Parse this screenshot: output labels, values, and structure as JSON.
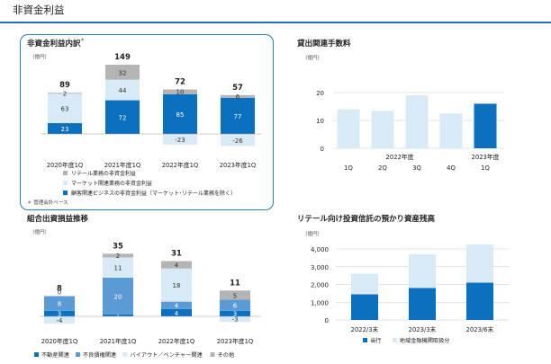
{
  "page": {
    "title": "非資金利益"
  },
  "colors": {
    "dark_blue": "#0a70bf",
    "mid_blue": "#5b9bd5",
    "light_blue": "#d9eaf7",
    "gray": "#b4b4b4",
    "accent_rule": "#1f6fbd"
  },
  "chart_data": [
    {
      "type": "bar",
      "stacked": true,
      "title": "非資金利益内訳",
      "title_mark": "*",
      "unit": "（億円）",
      "categories": [
        "2020年度1Q",
        "2021年度1Q",
        "2022年度1Q",
        "2023年度1Q"
      ],
      "totals": [
        89,
        149,
        72,
        57
      ],
      "series": [
        {
          "name": "顧客関連ビジネスの非資金利益（マーケット･リテール業務を除く）",
          "color": "#0a70bf",
          "values": [
            23,
            72,
            85,
            77
          ]
        },
        {
          "name": "マーケット関連業務の非資金利益",
          "color": "#d9eaf7",
          "values": [
            63,
            44,
            -23,
            -26
          ]
        },
        {
          "name": "リテール業務の非資金利益",
          "color": "#b4b4b4",
          "values": [
            2,
            32,
            10,
            6
          ]
        }
      ],
      "footnote": "＊ 管理会計ベース"
    },
    {
      "type": "bar",
      "title": "貸出関連手数料",
      "unit": "（億円）",
      "categories": [
        "1Q",
        "2Q",
        "3Q",
        "4Q",
        "1Q"
      ],
      "year_labels": [
        "2022年度",
        "2023年度"
      ],
      "values": [
        14,
        13.5,
        19,
        12.5,
        16
      ],
      "highlight_index": 4,
      "ylim": [
        0,
        20
      ],
      "yticks": [
        0,
        10,
        20
      ],
      "grid": true
    },
    {
      "type": "bar",
      "stacked": true,
      "title": "組合出資損益推移",
      "unit": "（億円）",
      "categories": [
        "2020年度1Q",
        "2021年度1Q",
        "2022年度1Q",
        "2023年度1Q"
      ],
      "totals": [
        8,
        35,
        31,
        11
      ],
      "series": [
        {
          "name": "不動産関連",
          "color": "#0a70bf",
          "values": [
            3,
            1,
            4,
            3
          ]
        },
        {
          "name": "不良債権関連",
          "color": "#5b9bd5",
          "values": [
            8,
            20,
            4,
            6
          ]
        },
        {
          "name": "バイアウト／ベンチャー関連",
          "color": "#d9eaf7",
          "values": [
            -4,
            11,
            18,
            -3
          ]
        },
        {
          "name": "その他",
          "color": "#b4b4b4",
          "values": [
            0,
            2,
            4,
            5
          ]
        }
      ]
    },
    {
      "type": "bar",
      "stacked": true,
      "title": "リテール向け投資信託の預かり資産残高",
      "unit": "（億円）",
      "categories": [
        "2022/3末",
        "2023/3末",
        "2023/6末"
      ],
      "series": [
        {
          "name": "当行",
          "color": "#0a70bf",
          "values": [
            1450,
            1800,
            2100
          ]
        },
        {
          "name": "地域金融機関取扱分",
          "color": "#d9eaf7",
          "values": [
            1150,
            1900,
            2150
          ]
        }
      ],
      "ylim": [
        0,
        4000
      ],
      "yticks": [
        0,
        1000,
        2000,
        3000,
        4000
      ],
      "ytick_labels": [
        "0",
        "1,000",
        "2,000",
        "3,000",
        "4,000"
      ],
      "grid": true
    }
  ]
}
